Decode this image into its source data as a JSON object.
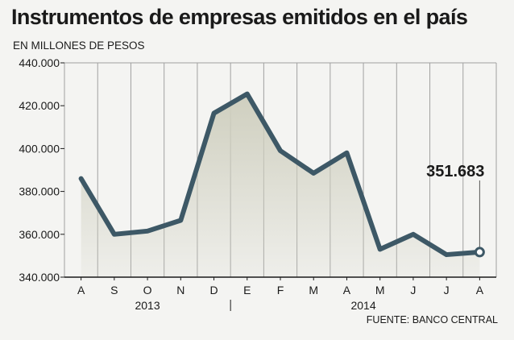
{
  "title": "Instrumentos de empresas emitidos en el país",
  "subtitle": "EN MILLONES DE PESOS",
  "source": "FUENTE: BANCO CENTRAL",
  "colors": {
    "line": "#3d5866",
    "area": "#cfcfbf",
    "grid": "#a0a0a0",
    "highlight_marker": "#ffffff",
    "background": "#f4f4f2"
  },
  "chart_data": {
    "type": "line",
    "title": "Instrumentos de empresas emitidos en el país",
    "subtitle": "EN MILLONES DE PESOS",
    "categories": [
      "A",
      "S",
      "O",
      "N",
      "D",
      "E",
      "F",
      "M",
      "A",
      "M",
      "J",
      "J",
      "A"
    ],
    "year_groups": [
      {
        "label": "2013",
        "categories": [
          "A",
          "S",
          "O",
          "N",
          "D"
        ]
      },
      {
        "label": "2014",
        "categories": [
          "E",
          "F",
          "M",
          "A",
          "M",
          "J",
          "J",
          "A"
        ]
      }
    ],
    "series": [
      {
        "values": [
          386000,
          360000,
          361500,
          366500,
          416500,
          425500,
          399000,
          388500,
          398000,
          353000,
          360000,
          350500,
          351683
        ]
      }
    ],
    "ylim": [
      340000,
      440000
    ],
    "yticks": [
      340000,
      360000,
      380000,
      400000,
      420000,
      440000
    ],
    "ytick_labels": [
      "340.000",
      "360.000",
      "380.000",
      "400.000",
      "420.000",
      "440.000"
    ],
    "grid": "vertical",
    "area_fill": true,
    "annotation": {
      "text": "351.683",
      "index": 12
    }
  }
}
